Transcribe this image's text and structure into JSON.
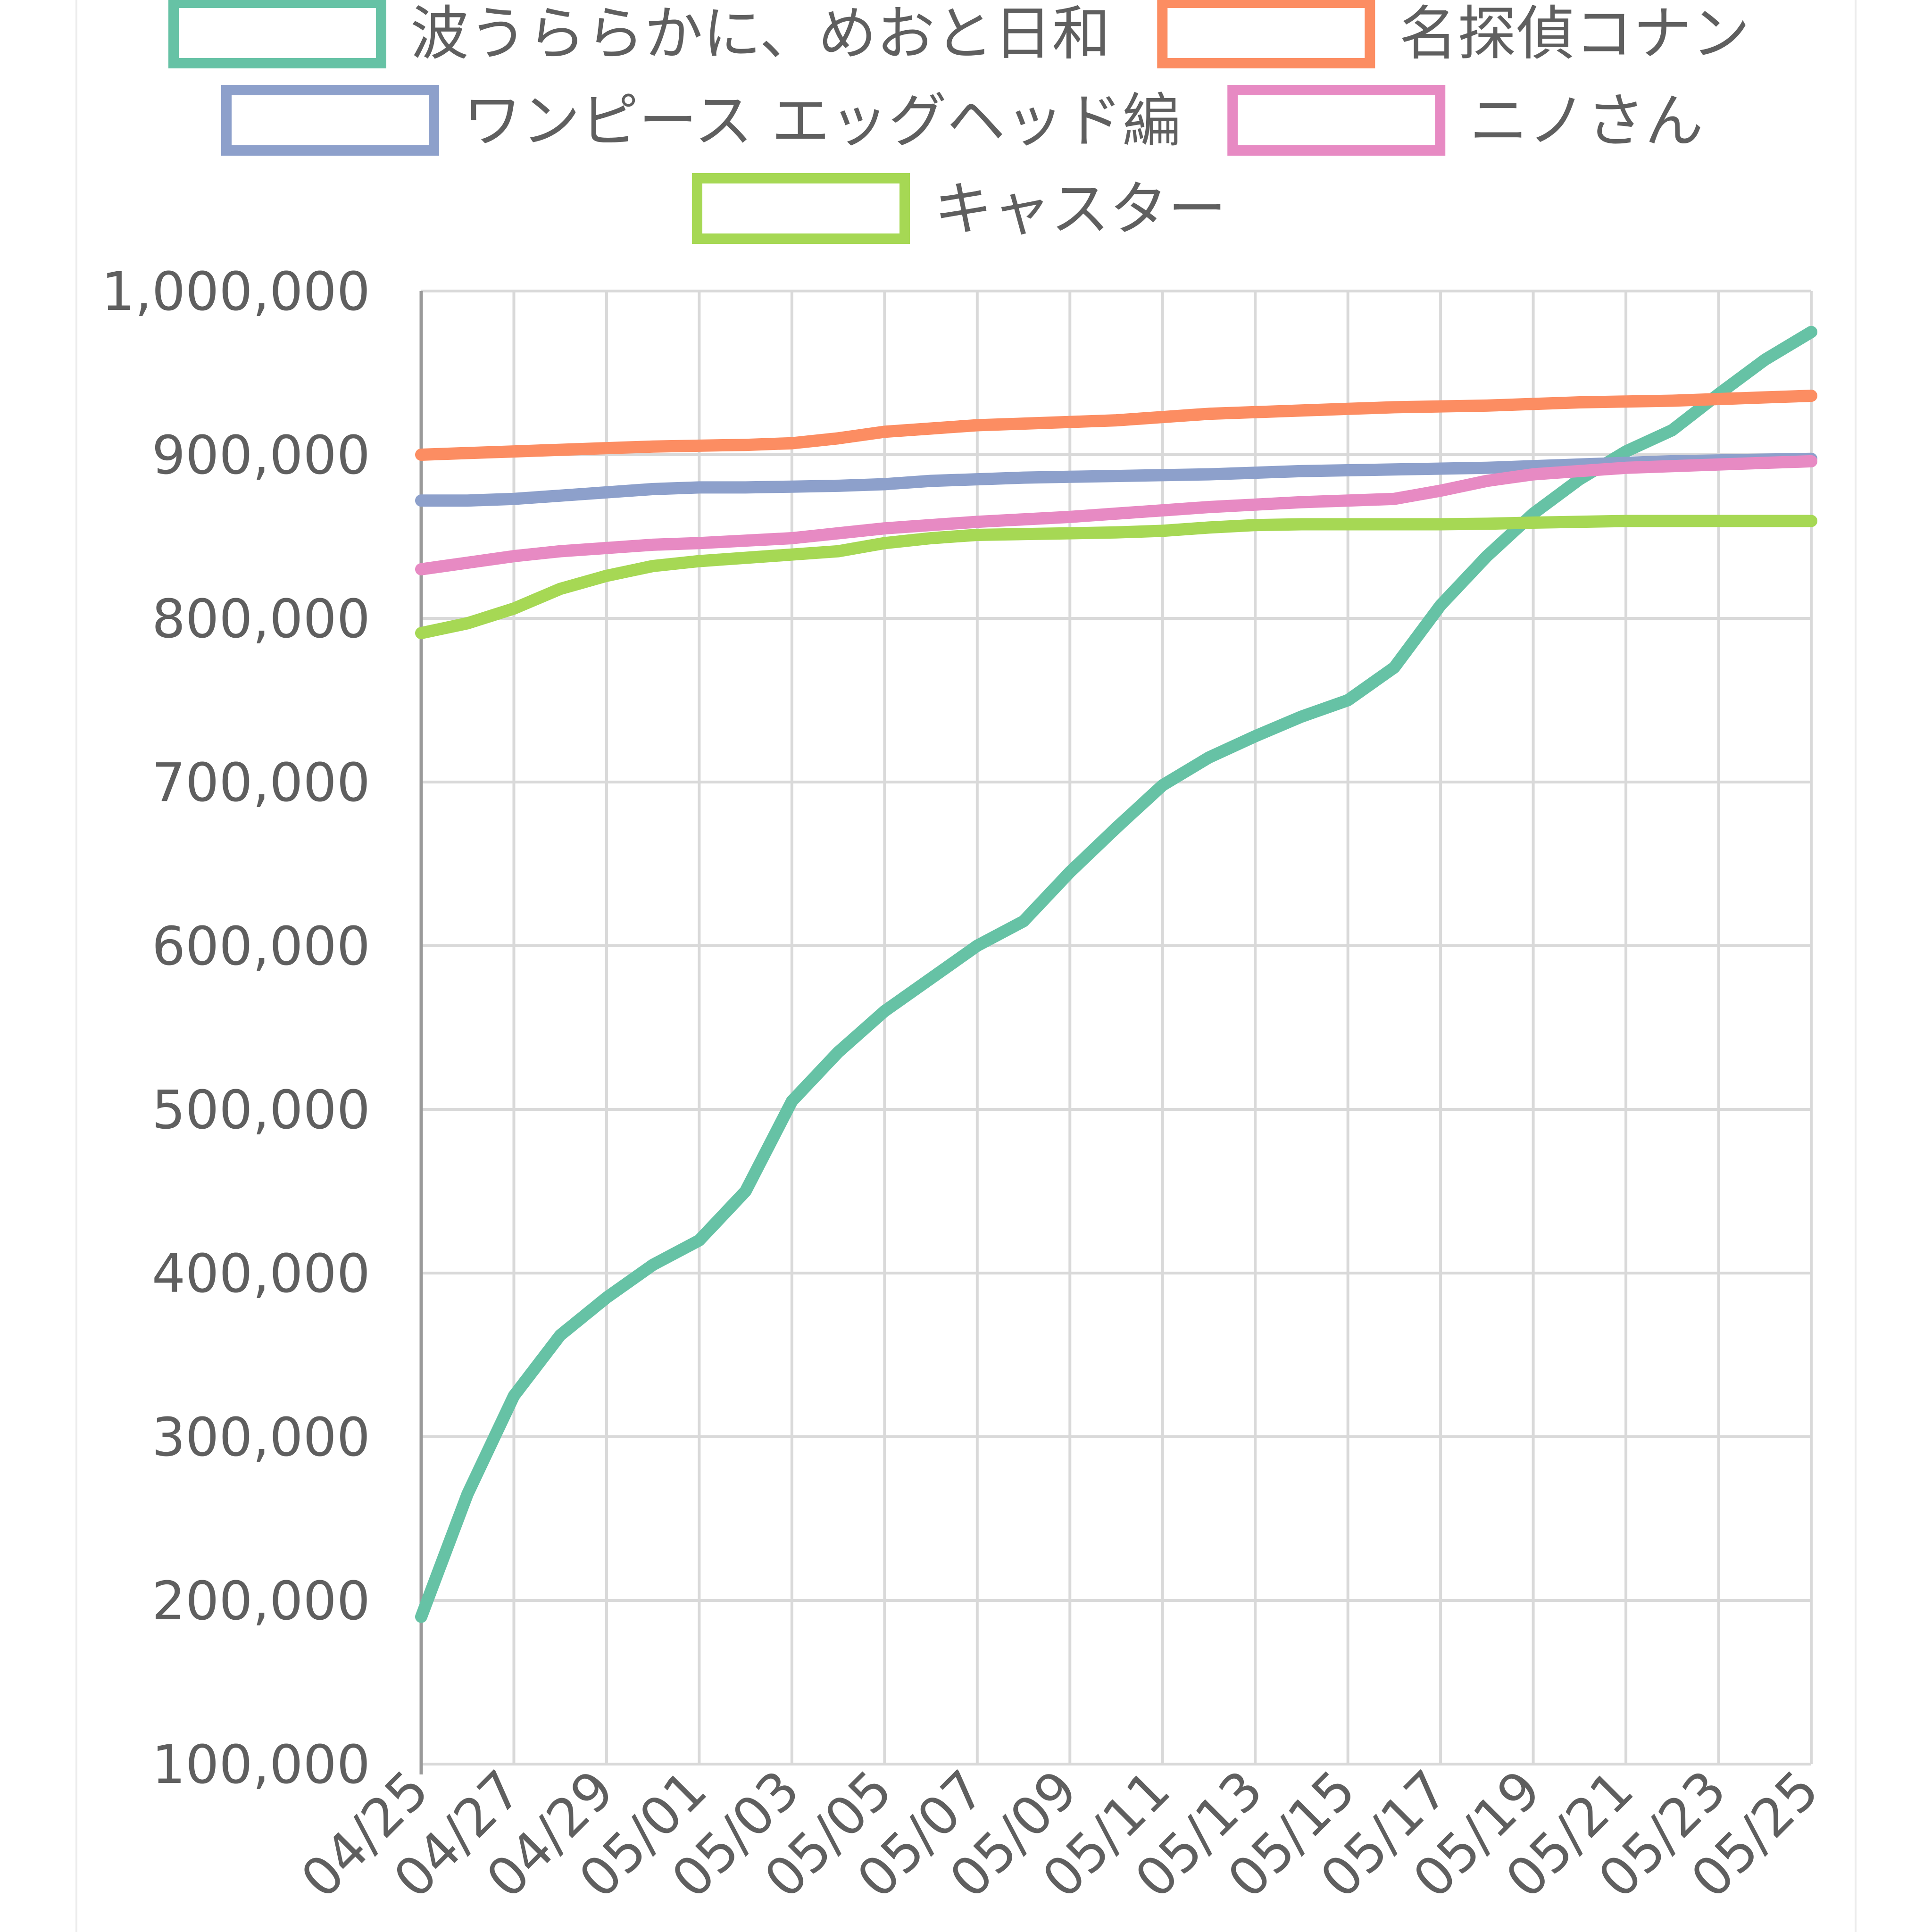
{
  "chart_data": {
    "type": "line",
    "title": "",
    "xlabel": "",
    "ylabel": "",
    "ylim": [
      100000,
      1000000
    ],
    "y_ticks": [
      "100,000",
      "200,000",
      "300,000",
      "400,000",
      "500,000",
      "600,000",
      "700,000",
      "800,000",
      "900,000",
      "1,000,000"
    ],
    "y_tick_values": [
      100000,
      200000,
      300000,
      400000,
      500000,
      600000,
      700000,
      800000,
      900000,
      1000000
    ],
    "x_tick_labels": [
      "04/25",
      "04/27",
      "04/29",
      "05/01",
      "05/03",
      "05/05",
      "05/07",
      "05/09",
      "05/11",
      "05/13",
      "05/15",
      "05/17",
      "05/19",
      "05/21",
      "05/23",
      "05/25"
    ],
    "categories": [
      "04/25",
      "04/26",
      "04/27",
      "04/28",
      "04/29",
      "04/30",
      "05/01",
      "05/02",
      "05/03",
      "05/04",
      "05/05",
      "05/06",
      "05/07",
      "05/08",
      "05/09",
      "05/10",
      "05/11",
      "05/12",
      "05/13",
      "05/14",
      "05/15",
      "05/16",
      "05/17",
      "05/18",
      "05/19",
      "05/20",
      "05/21",
      "05/22",
      "05/23",
      "05/24",
      "05/25"
    ],
    "grid": true,
    "legend_position": "top",
    "series": [
      {
        "name": "波うららかに、めおと日和",
        "color": "#66c2a5",
        "values": [
          190000,
          265000,
          325000,
          362000,
          385000,
          405000,
          420000,
          450000,
          505000,
          535000,
          560000,
          580000,
          600000,
          615000,
          645000,
          672000,
          698000,
          715000,
          728000,
          740000,
          750000,
          770000,
          808000,
          838000,
          864000,
          885000,
          902000,
          915000,
          937000,
          958000,
          975000
        ]
      },
      {
        "name": "名探偵コナン",
        "color": "#fc8d62",
        "values": [
          900000,
          901000,
          902000,
          903000,
          904000,
          905000,
          905500,
          906000,
          907000,
          910000,
          914000,
          916000,
          918000,
          919000,
          920000,
          921000,
          923000,
          925000,
          926000,
          927000,
          928000,
          929000,
          929500,
          930000,
          931000,
          932000,
          932500,
          933000,
          934000,
          935000,
          936000
        ]
      },
      {
        "name": "ワンピース エッグヘッド編",
        "color": "#8da0cb",
        "values": [
          872000,
          872000,
          873000,
          875000,
          877000,
          879000,
          880000,
          880000,
          880500,
          881000,
          882000,
          884000,
          885000,
          886000,
          886500,
          887000,
          887500,
          888000,
          889000,
          890000,
          890500,
          891000,
          891500,
          892000,
          893000,
          894000,
          895000,
          896000,
          896500,
          897000,
          897500
        ]
      },
      {
        "name": "ニノさん",
        "color": "#e78ac3",
        "values": [
          830000,
          834000,
          838000,
          841000,
          843000,
          845000,
          846000,
          847500,
          849000,
          852000,
          855000,
          857000,
          859000,
          860500,
          862000,
          864000,
          866000,
          868000,
          869500,
          871000,
          872000,
          873000,
          878000,
          884000,
          888000,
          890000,
          892000,
          893000,
          894000,
          895000,
          896000
        ]
      },
      {
        "name": "キャスター",
        "color": "#a6d854",
        "values": [
          791000,
          797000,
          806000,
          818000,
          826000,
          832000,
          835000,
          837000,
          839000,
          841000,
          846000,
          849000,
          851000,
          851500,
          852000,
          852500,
          853500,
          855500,
          857000,
          857500,
          857500,
          857500,
          857500,
          857800,
          858500,
          859000,
          859500,
          859500,
          859500,
          859500,
          859500
        ]
      }
    ]
  }
}
